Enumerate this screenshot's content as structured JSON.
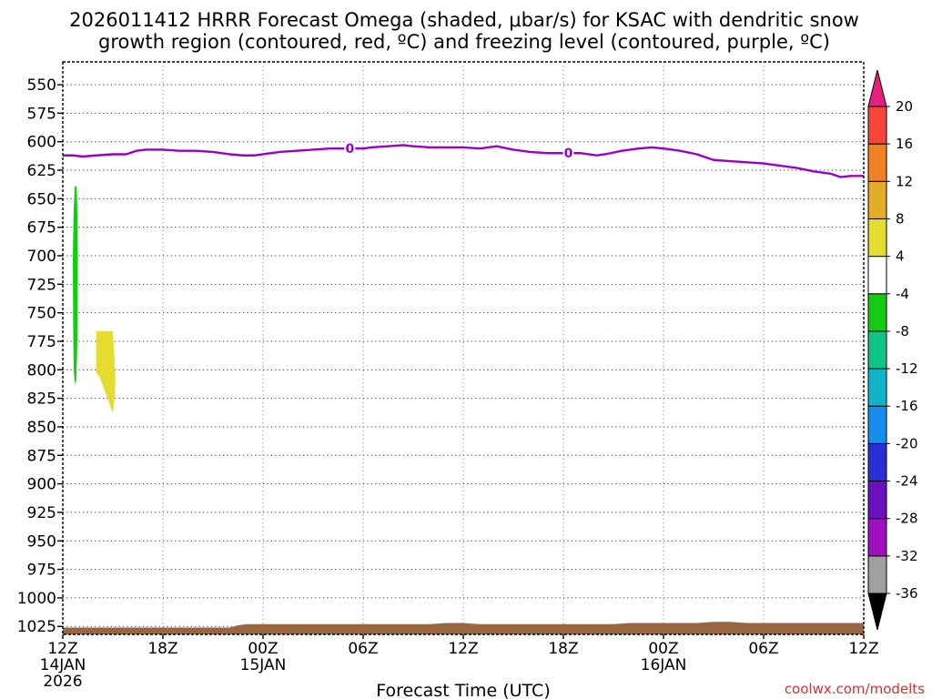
{
  "chart_data": {
    "type": "time-height cross-section",
    "title_lines": [
      "2026011412 HRRR Forecast Omega (shaded, μbar/s) for KSAC with dendritic snow",
      "growth region (contoured, red, ºC) and freezing level (contoured, purple, ºC)"
    ],
    "xlabel": "Forecast Time (UTC)",
    "credit": "coolwx.com/modelts",
    "x_range_hours": [
      0,
      48
    ],
    "y_range_hpa": [
      530,
      1032
    ],
    "y_ticks": [
      550,
      575,
      600,
      625,
      650,
      675,
      700,
      725,
      750,
      775,
      800,
      825,
      850,
      875,
      900,
      925,
      950,
      975,
      1000,
      1025
    ],
    "x_ticks": [
      {
        "hour": 0,
        "lines": [
          "12Z",
          "14JAN",
          "2026"
        ]
      },
      {
        "hour": 6,
        "lines": [
          "18Z"
        ]
      },
      {
        "hour": 12,
        "lines": [
          "00Z",
          "15JAN"
        ]
      },
      {
        "hour": 18,
        "lines": [
          "06Z"
        ]
      },
      {
        "hour": 24,
        "lines": [
          "12Z"
        ]
      },
      {
        "hour": 30,
        "lines": [
          "18Z"
        ]
      },
      {
        "hour": 36,
        "lines": [
          "00Z",
          "16JAN"
        ]
      },
      {
        "hour": 42,
        "lines": [
          "06Z"
        ]
      },
      {
        "hour": 48,
        "lines": [
          "12Z"
        ]
      }
    ],
    "freezing_level": {
      "label": "0",
      "color": "#9900cc",
      "label_hours": [
        17.2,
        30.3
      ],
      "points": [
        [
          0,
          612
        ],
        [
          0.6,
          612
        ],
        [
          1.2,
          613
        ],
        [
          2,
          612
        ],
        [
          3,
          611
        ],
        [
          3.8,
          611
        ],
        [
          4.4,
          608
        ],
        [
          5,
          607
        ],
        [
          6,
          607
        ],
        [
          7,
          608
        ],
        [
          8,
          608
        ],
        [
          9,
          609
        ],
        [
          10,
          611
        ],
        [
          10.8,
          612
        ],
        [
          11.5,
          612
        ],
        [
          12,
          611
        ],
        [
          13,
          609
        ],
        [
          14,
          608
        ],
        [
          15,
          607
        ],
        [
          16,
          606
        ],
        [
          17,
          606
        ],
        [
          17.2,
          606
        ],
        [
          18,
          606
        ],
        [
          18.5,
          605
        ],
        [
          19.5,
          604
        ],
        [
          20.4,
          603
        ],
        [
          21,
          604
        ],
        [
          22,
          605
        ],
        [
          23,
          605
        ],
        [
          24,
          605
        ],
        [
          25,
          606
        ],
        [
          26,
          604
        ],
        [
          27,
          607
        ],
        [
          28,
          609
        ],
        [
          29,
          610
        ],
        [
          30,
          610
        ],
        [
          30.3,
          610
        ],
        [
          31,
          610
        ],
        [
          32,
          612
        ],
        [
          32.5,
          611
        ],
        [
          33.5,
          608
        ],
        [
          34.5,
          606
        ],
        [
          35.3,
          605
        ],
        [
          36,
          606
        ],
        [
          37,
          608
        ],
        [
          38,
          611
        ],
        [
          39,
          616
        ],
        [
          40,
          617
        ],
        [
          41,
          618
        ],
        [
          42,
          619
        ],
        [
          43,
          621
        ],
        [
          44,
          623
        ],
        [
          45,
          626
        ],
        [
          46,
          628
        ],
        [
          46.6,
          631
        ],
        [
          47.2,
          630
        ],
        [
          48,
          630
        ]
      ]
    },
    "omega_shaded": [
      {
        "range": "-8 to -4",
        "color": "#11cc11",
        "polygon": [
          [
            0.72,
            639
          ],
          [
            0.83,
            639
          ],
          [
            0.87,
            660
          ],
          [
            0.9,
            700
          ],
          [
            0.89,
            760
          ],
          [
            0.85,
            790
          ],
          [
            0.8,
            810
          ],
          [
            0.73,
            812
          ],
          [
            0.65,
            800
          ],
          [
            0.62,
            760
          ],
          [
            0.6,
            700
          ],
          [
            0.65,
            660
          ]
        ]
      },
      {
        "range": "4 to 8",
        "color": "#e4dc2e",
        "polygon": [
          [
            2.0,
            766
          ],
          [
            3.0,
            766
          ],
          [
            3.1,
            790
          ],
          [
            3.15,
            810
          ],
          [
            3.1,
            825
          ],
          [
            3.0,
            838
          ],
          [
            2.5,
            818
          ],
          [
            2.2,
            806
          ],
          [
            2.0,
            803
          ]
        ]
      }
    ],
    "terrain": {
      "color": "#996644",
      "points": [
        [
          0,
          1026
        ],
        [
          5,
          1026
        ],
        [
          10,
          1026
        ],
        [
          10.5,
          1024
        ],
        [
          11,
          1023
        ],
        [
          15,
          1023
        ],
        [
          20,
          1023
        ],
        [
          22,
          1023
        ],
        [
          23,
          1022
        ],
        [
          24,
          1022
        ],
        [
          25,
          1023
        ],
        [
          30,
          1023
        ],
        [
          33,
          1023
        ],
        [
          34,
          1022
        ],
        [
          38,
          1022
        ],
        [
          39,
          1021
        ],
        [
          40,
          1021
        ],
        [
          41,
          1022
        ],
        [
          44,
          1022
        ],
        [
          48,
          1022
        ]
      ]
    },
    "colorbar": {
      "units": "μbar/s",
      "bins": [
        {
          "color": "#000000"
        },
        {
          "color": "#a0a0a0"
        },
        {
          "color": "#9f0fbf"
        },
        {
          "color": "#6b0fc2"
        },
        {
          "color": "#2a2fd5"
        },
        {
          "color": "#168ef0"
        },
        {
          "color": "#10b4c8"
        },
        {
          "color": "#0fc489"
        },
        {
          "color": "#11cc11"
        },
        {
          "color": "#ffffff"
        },
        {
          "color": "#e4dc2e"
        },
        {
          "color": "#e4ad29"
        },
        {
          "color": "#f28123"
        },
        {
          "color": "#f5443a"
        },
        {
          "color": "#e61f7d"
        }
      ],
      "labels": [
        "-36",
        "-32",
        "-28",
        "-24",
        "-20",
        "-16",
        "-12",
        "-8",
        "-4",
        "4",
        "8",
        "12",
        "16",
        "20"
      ]
    }
  }
}
